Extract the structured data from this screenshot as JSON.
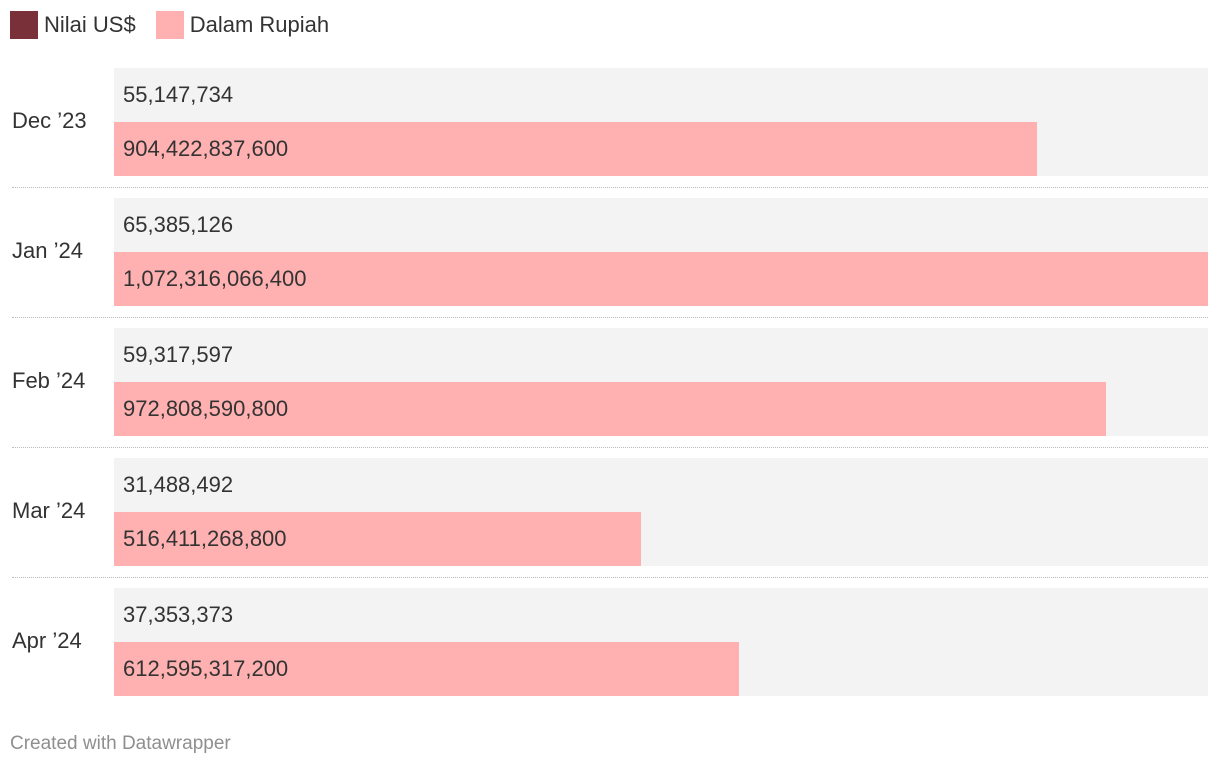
{
  "chart_data": {
    "type": "bar",
    "orientation": "horizontal",
    "categories": [
      "Dec ’23",
      "Jan ’24",
      "Feb ’24",
      "Mar ’24",
      "Apr ’24"
    ],
    "series": [
      {
        "name": "Nilai US$",
        "color": "#7a3038",
        "values": [
          55147734,
          65385126,
          59317597,
          31488492,
          37353373
        ],
        "labels": [
          "55,147,734",
          "65,385,126",
          "59,317,597",
          "31,488,492",
          "37,353,373"
        ]
      },
      {
        "name": "Dalam Rupiah",
        "color": "#ffb0b0",
        "values": [
          904422837600,
          1072316066400,
          972808590800,
          516411268800,
          612595317200
        ],
        "labels": [
          "904,422,837,600",
          "1,072,316,066,400",
          "972,808,590,800",
          "516,411,268,800",
          "612,595,317,200"
        ]
      }
    ],
    "legend": "top-left",
    "grid": false
  },
  "footer": "Created with Datawrapper"
}
